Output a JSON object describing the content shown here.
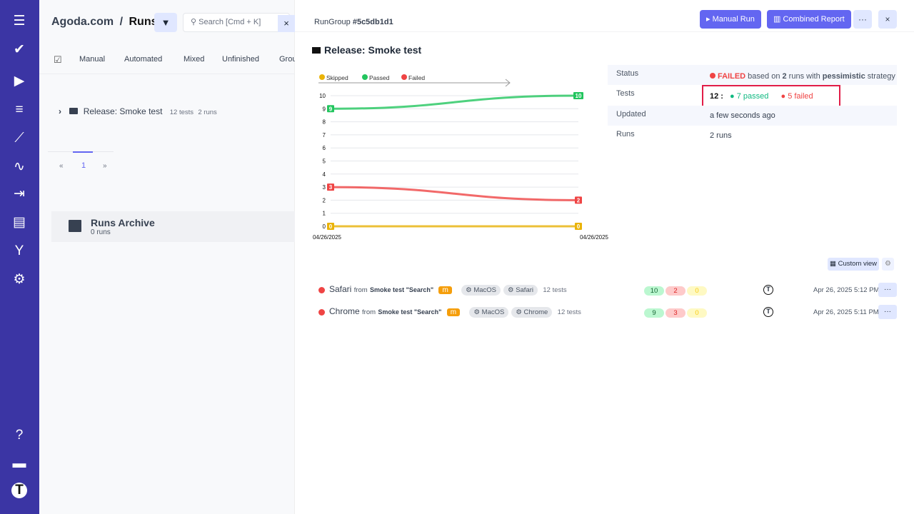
{
  "sidebar": {
    "icons": [
      "menu-icon",
      "check-icon",
      "play-circle-icon",
      "list-check-icon",
      "steps-icon",
      "pulse-icon",
      "import-icon",
      "chart-icon",
      "branch-icon",
      "gear-icon",
      "help-icon",
      "folder-icon",
      "testomat-logo-icon"
    ]
  },
  "left": {
    "breadcrumb_project": "Agoda.com",
    "breadcrumb_sep": "/",
    "breadcrumb_page": "Runs",
    "search_placeholder": "Search [Cmd + K]",
    "tabs": [
      "Manual",
      "Automated",
      "Mixed",
      "Unfinished",
      "Grou"
    ],
    "group": {
      "name": "Release: Smoke test",
      "tests": "12 tests",
      "runs": "2 runs"
    },
    "pagination": {
      "prev": "«",
      "page": "1",
      "next": "»"
    },
    "archive": {
      "title": "Runs Archive",
      "count": "0 runs"
    }
  },
  "right": {
    "rungroup_label": "RunGroup",
    "rungroup_id": "#5c5db1d1",
    "manual_run": "Manual Run",
    "combined_report": "Combined Report",
    "more": "···",
    "close": "×",
    "title": "Release: Smoke test",
    "status": {
      "label": "Status",
      "state": "FAILED",
      "t1": " based on ",
      "runs": "2",
      "t2": " runs with ",
      "strategy": "pessimistic",
      "t3": " strategy"
    },
    "tests": {
      "label": "Tests",
      "total": "12 :",
      "passed": "7 passed",
      "failed": "5 failed"
    },
    "updated": {
      "label": "Updated",
      "value": "a few seconds ago"
    },
    "runs": {
      "label": "Runs",
      "value": "2 runs"
    },
    "custom_view": "Custom view",
    "run_list": [
      {
        "name": "Safari",
        "from": "from",
        "source": "Smoke test \"Search\"",
        "badge": "m",
        "tags": [
          "MacOS",
          "Safari"
        ],
        "tests": "12 tests",
        "passed": "10",
        "failed": "2",
        "skipped": "0",
        "date": "Apr 26, 2025 5:12 PM"
      },
      {
        "name": "Chrome",
        "from": "from",
        "source": "Smoke test \"Search\"",
        "badge": "m",
        "tags": [
          "MacOS",
          "Chrome"
        ],
        "tests": "12 tests",
        "passed": "9",
        "failed": "3",
        "skipped": "0",
        "date": "Apr 26, 2025 5:11 PM"
      }
    ]
  },
  "chart_data": {
    "type": "line",
    "categories": [
      "04/26/2025",
      "04/26/2025"
    ],
    "ylim": [
      0,
      10
    ],
    "yticks": [
      "0",
      "1",
      "2",
      "3",
      "4",
      "5",
      "6",
      "7",
      "8",
      "9",
      "10"
    ],
    "legend": "top-left",
    "grid": true,
    "series": [
      {
        "name": "Skipped",
        "color": "#eab308",
        "values": [
          0,
          0
        ]
      },
      {
        "name": "Passed",
        "color": "#22c55e",
        "values": [
          9,
          10
        ]
      },
      {
        "name": "Failed",
        "color": "#ef4444",
        "values": [
          3,
          2
        ]
      }
    ]
  }
}
